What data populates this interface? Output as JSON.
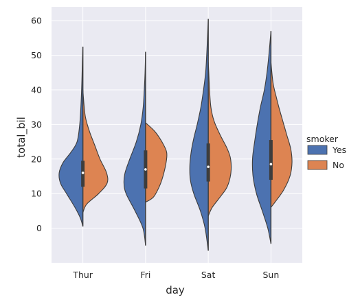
{
  "chart_data": {
    "type": "violin",
    "title": "",
    "xlabel": "day",
    "ylabel": "total_bil",
    "categories": [
      "Thur",
      "Fri",
      "Sat",
      "Sun"
    ],
    "ylim": [
      -10,
      64
    ],
    "yticks": [
      0,
      10,
      20,
      30,
      40,
      50,
      60
    ],
    "grid": true,
    "split": true,
    "legend": {
      "title": "smoker",
      "placement": "right",
      "entries": [
        {
          "label": "Yes",
          "color": "#4c72b0"
        },
        {
          "label": "No",
          "color": "#dd8452"
        }
      ]
    },
    "series": [
      {
        "name": "Yes",
        "color": "#4c72b0",
        "violins": [
          {
            "min": 0.5,
            "max": 52.5,
            "q1": 13.5,
            "median": 16.5,
            "q3": 19.5,
            "profile": [
              [
                0.5,
                0.0
              ],
              [
                3,
                0.1
              ],
              [
                6,
                0.3
              ],
              [
                10,
                0.62
              ],
              [
                13,
                0.85
              ],
              [
                16,
                0.9
              ],
              [
                19,
                0.75
              ],
              [
                22,
                0.45
              ],
              [
                25,
                0.22
              ],
              [
                30,
                0.12
              ],
              [
                36,
                0.07
              ],
              [
                42,
                0.04
              ],
              [
                48,
                0.02
              ],
              [
                52.5,
                0.0
              ]
            ]
          },
          {
            "min": -5,
            "max": 51,
            "q1": 11.5,
            "median": 15.0,
            "q3": 21.5,
            "profile": [
              [
                -5,
                0.0
              ],
              [
                0,
                0.1
              ],
              [
                5,
                0.4
              ],
              [
                10,
                0.74
              ],
              [
                13,
                0.82
              ],
              [
                16,
                0.78
              ],
              [
                20,
                0.6
              ],
              [
                25,
                0.35
              ],
              [
                30,
                0.18
              ],
              [
                35,
                0.09
              ],
              [
                40,
                0.05
              ],
              [
                45,
                0.02
              ],
              [
                51,
                0.0
              ]
            ]
          },
          {
            "min": -6.5,
            "max": 60.5,
            "q1": 14.0,
            "median": 18.0,
            "q3": 24.5,
            "profile": [
              [
                -6.5,
                0.0
              ],
              [
                0,
                0.12
              ],
              [
                5,
                0.3
              ],
              [
                10,
                0.55
              ],
              [
                14,
                0.68
              ],
              [
                18,
                0.7
              ],
              [
                22,
                0.65
              ],
              [
                26,
                0.55
              ],
              [
                30,
                0.42
              ],
              [
                35,
                0.28
              ],
              [
                40,
                0.18
              ],
              [
                45,
                0.1
              ],
              [
                50,
                0.06
              ],
              [
                55,
                0.03
              ],
              [
                60.5,
                0.0
              ]
            ]
          },
          {
            "min": -4.5,
            "max": 57,
            "q1": 14.5,
            "median": 19.5,
            "q3": 25.5,
            "profile": [
              [
                -4.5,
                0.0
              ],
              [
                0,
                0.12
              ],
              [
                5,
                0.33
              ],
              [
                10,
                0.55
              ],
              [
                15,
                0.68
              ],
              [
                20,
                0.7
              ],
              [
                25,
                0.62
              ],
              [
                30,
                0.52
              ],
              [
                35,
                0.4
              ],
              [
                40,
                0.25
              ],
              [
                45,
                0.15
              ],
              [
                50,
                0.08
              ],
              [
                57,
                0.0
              ]
            ]
          }
        ]
      },
      {
        "name": "No",
        "color": "#dd8452",
        "violins": [
          {
            "min": 4.5,
            "max": 40,
            "q1": 12.0,
            "median": 15.5,
            "q3": 19.5,
            "profile": [
              [
                4.5,
                0.0
              ],
              [
                7,
                0.15
              ],
              [
                10,
                0.6
              ],
              [
                13,
                0.92
              ],
              [
                16,
                0.9
              ],
              [
                20,
                0.65
              ],
              [
                24,
                0.45
              ],
              [
                28,
                0.25
              ],
              [
                32,
                0.1
              ],
              [
                36,
                0.04
              ],
              [
                40,
                0.0
              ]
            ]
          },
          {
            "min": 7.5,
            "max": 30.5,
            "q1": 12.5,
            "median": 19.0,
            "q3": 22.5,
            "profile": [
              [
                7.5,
                0.0
              ],
              [
                9,
                0.3
              ],
              [
                12,
                0.52
              ],
              [
                15,
                0.66
              ],
              [
                19,
                0.78
              ],
              [
                22,
                0.8
              ],
              [
                25,
                0.62
              ],
              [
                28,
                0.35
              ],
              [
                30.5,
                0.0
              ]
            ]
          },
          {
            "min": 3.5,
            "max": 48,
            "q1": 13.5,
            "median": 17.5,
            "q3": 22.0,
            "profile": [
              [
                3.5,
                0.0
              ],
              [
                6,
                0.15
              ],
              [
                9,
                0.45
              ],
              [
                12,
                0.72
              ],
              [
                16,
                0.86
              ],
              [
                20,
                0.85
              ],
              [
                23,
                0.72
              ],
              [
                27,
                0.45
              ],
              [
                31,
                0.22
              ],
              [
                35,
                0.1
              ],
              [
                40,
                0.05
              ],
              [
                45,
                0.02
              ],
              [
                48,
                0.0
              ]
            ]
          },
          {
            "min": 6,
            "max": 48,
            "q1": 14.0,
            "median": 17.5,
            "q3": 22.5,
            "profile": [
              [
                6,
                0.0
              ],
              [
                8,
                0.2
              ],
              [
                11,
                0.48
              ],
              [
                15,
                0.72
              ],
              [
                19,
                0.8
              ],
              [
                23,
                0.75
              ],
              [
                27,
                0.6
              ],
              [
                31,
                0.45
              ],
              [
                35,
                0.3
              ],
              [
                38,
                0.2
              ],
              [
                42,
                0.08
              ],
              [
                48,
                0.0
              ]
            ]
          }
        ]
      }
    ]
  }
}
